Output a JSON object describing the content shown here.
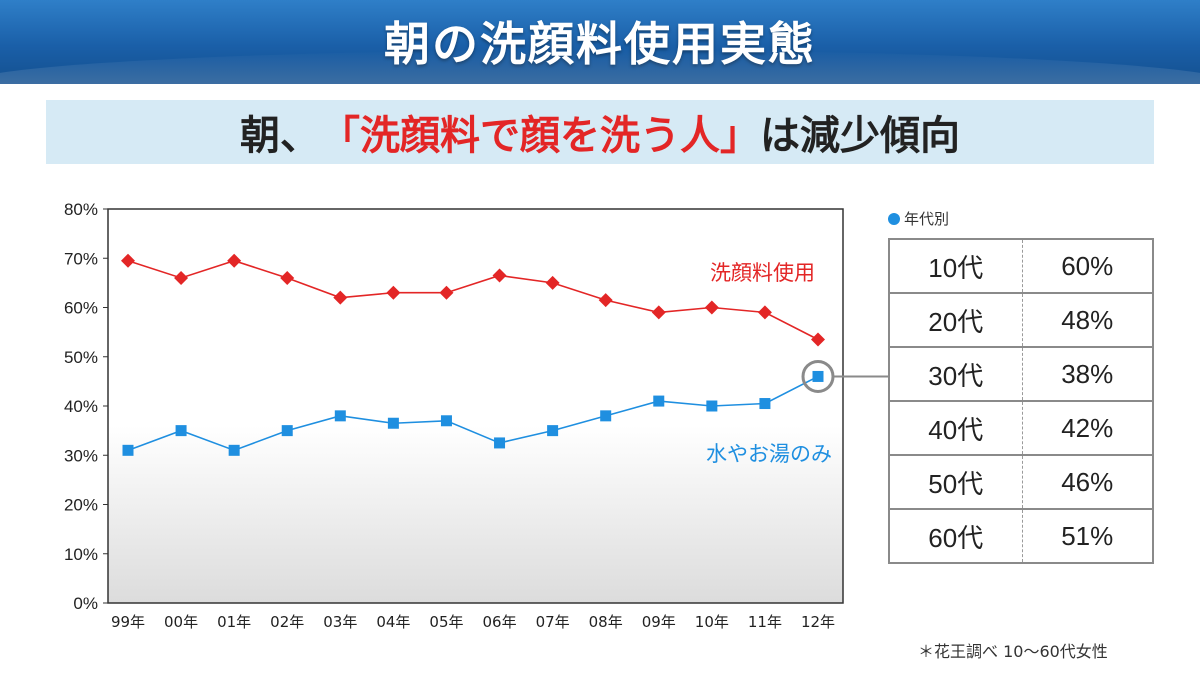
{
  "header": {
    "title": "朝の洗顔料使用実態"
  },
  "subtitle": {
    "before": "朝、",
    "highlight": "「洗顔料で顔を洗う人」",
    "after": "は減少傾向"
  },
  "colors": {
    "header_blue": "#1a5fa8",
    "subtitle_bg": "#d6eaf5",
    "series_red": "#e32626",
    "series_blue": "#1f8fe0",
    "accent_red": "#e32626"
  },
  "chart_data": {
    "type": "line",
    "categories": [
      "99年",
      "00年",
      "01年",
      "02年",
      "03年",
      "04年",
      "05年",
      "06年",
      "07年",
      "08年",
      "09年",
      "10年",
      "11年",
      "12年"
    ],
    "series": [
      {
        "name": "洗顔料使用",
        "color": "#e32626",
        "marker": "diamond",
        "values": [
          69.5,
          66,
          69.5,
          66,
          62,
          63,
          63,
          66.5,
          65,
          61.5,
          59,
          60,
          59,
          53.5
        ]
      },
      {
        "name": "水やお湯のみ",
        "color": "#1f8fe0",
        "marker": "square",
        "values": [
          31,
          35,
          31,
          35,
          38,
          36.5,
          37,
          32.5,
          35,
          38,
          41,
          40,
          40.5,
          46
        ]
      }
    ],
    "ylim": [
      0,
      80
    ],
    "yticks": [
      "0%",
      "10%",
      "20%",
      "30%",
      "40%",
      "50%",
      "60%",
      "70%",
      "80%"
    ],
    "grid": false,
    "highlight_point": {
      "series": "水やお湯のみ",
      "category": "12年"
    }
  },
  "age_table": {
    "title": "年代別",
    "rows": [
      {
        "age": "10代",
        "value": "60%"
      },
      {
        "age": "20代",
        "value": "48%"
      },
      {
        "age": "30代",
        "value": "38%"
      },
      {
        "age": "40代",
        "value": "42%"
      },
      {
        "age": "50代",
        "value": "46%"
      },
      {
        "age": "60代",
        "value": "51%"
      }
    ]
  },
  "footnote": "＊花王調べ 10〜60代女性"
}
